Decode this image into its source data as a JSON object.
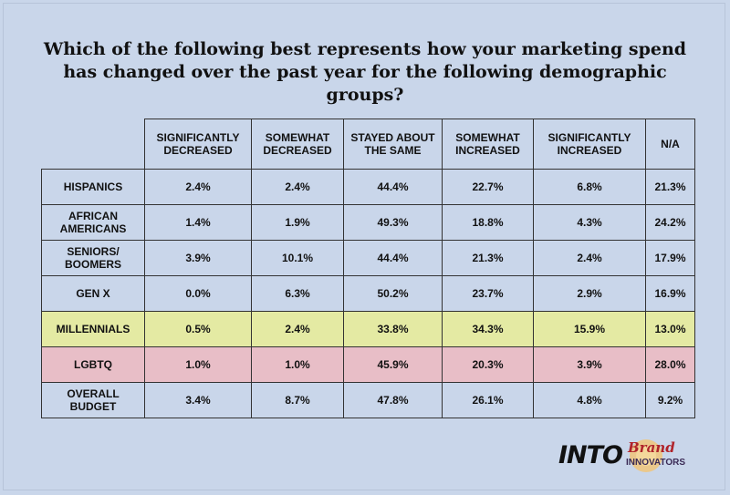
{
  "chart_data": {
    "type": "table",
    "title": "Which of the following best represents how your marketing spend has changed over the past year for the following demographic groups?",
    "columns": [
      "SIGNIFICANTLY DECREASED",
      "SOMEWHAT DECREASED",
      "STAYED ABOUT THE SAME",
      "SOMEWHAT INCREASED",
      "SIGNIFICANTLY INCREASED",
      "N/A"
    ],
    "rows": [
      {
        "label": "HISPANICS",
        "values": [
          "2.4%",
          "2.4%",
          "44.4%",
          "22.7%",
          "6.8%",
          "21.3%"
        ]
      },
      {
        "label": "AFRICAN AMERICANS",
        "values": [
          "1.4%",
          "1.9%",
          "49.3%",
          "18.8%",
          "4.3%",
          "24.2%"
        ]
      },
      {
        "label": "SENIORS/ BOOMERS",
        "values": [
          "3.9%",
          "10.1%",
          "44.4%",
          "21.3%",
          "2.4%",
          "17.9%"
        ]
      },
      {
        "label": "GEN X",
        "values": [
          "0.0%",
          "6.3%",
          "50.2%",
          "23.7%",
          "2.9%",
          "16.9%"
        ]
      },
      {
        "label": "MILLENNIALS",
        "values": [
          "0.5%",
          "2.4%",
          "33.8%",
          "34.3%",
          "15.9%",
          "13.0%"
        ],
        "highlight": "#e4eaa3"
      },
      {
        "label": "LGBTQ",
        "values": [
          "1.0%",
          "1.0%",
          "45.9%",
          "20.3%",
          "3.9%",
          "28.0%"
        ],
        "highlight": "#e8bec7"
      },
      {
        "label": "OVERALL BUDGET",
        "values": [
          "3.4%",
          "8.7%",
          "47.8%",
          "26.1%",
          "4.8%",
          "9.2%"
        ]
      }
    ]
  },
  "logos": {
    "into": "INTO",
    "brand_line1": "Brand",
    "brand_line2": "INNOVATORS"
  },
  "colors": {
    "background": "#c9d6ea",
    "millennials_highlight": "#e4eaa3",
    "lgbtq_highlight": "#e8bec7"
  }
}
